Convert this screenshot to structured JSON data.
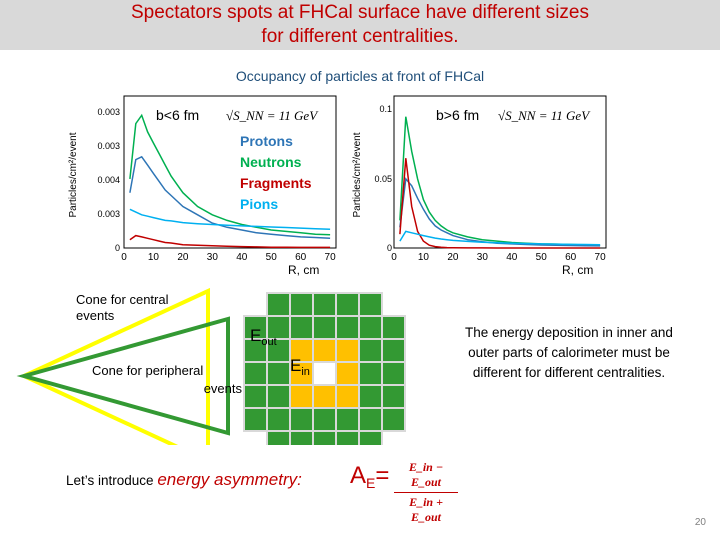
{
  "slide": {
    "title_line1": "Spectators spots at FHCal surface have different sizes",
    "title_line2": "for different centralities.",
    "subtitle": "Occupancy of particles at front of FHCal",
    "page_number": "20"
  },
  "left_chart": {
    "region_label": "b<6 fm",
    "energy_label": "√S_NN = 11 GeV",
    "y_axis_label": "Particles/cm²/event",
    "x_axis_label": "R, cm",
    "y_ticks": [
      "0.003",
      "0.003",
      "0.004",
      "0.003",
      "0"
    ],
    "x_ticks": [
      "0",
      "10",
      "20",
      "30",
      "40",
      "50",
      "60",
      "70"
    ],
    "legend": [
      {
        "name": "Protons",
        "color": "#2e75b6"
      },
      {
        "name": "Neutrons",
        "color": "#00b050"
      },
      {
        "name": "Fragments",
        "color": "#c00000"
      },
      {
        "name": "Pions",
        "color": "#00b0f0"
      }
    ]
  },
  "right_chart": {
    "region_label": "b>6 fm",
    "energy_label": "√S_NN = 11 GeV",
    "y_axis_label": "Particles/cm²/event",
    "x_axis_label": "R, cm",
    "y_ticks": [
      "0.1",
      "0.05",
      "0"
    ],
    "x_ticks": [
      "0",
      "10",
      "20",
      "30",
      "40",
      "50",
      "60",
      "70"
    ]
  },
  "chart_data": [
    {
      "type": "line",
      "title": "b<6 fm",
      "xlabel": "R, cm",
      "ylabel": "Particles/cm²/event",
      "xlim": [
        0,
        72
      ],
      "ylim": [
        0,
        0.0055
      ],
      "x": [
        2,
        4,
        6,
        8,
        10,
        12,
        14,
        16,
        18,
        20,
        25,
        30,
        35,
        40,
        45,
        50,
        55,
        60,
        65,
        70
      ],
      "series": [
        {
          "name": "Neutrons",
          "color": "#00b050",
          "values": [
            0.0025,
            0.0045,
            0.0048,
            0.0042,
            0.0038,
            0.0034,
            0.003,
            0.0026,
            0.0023,
            0.002,
            0.0015,
            0.0012,
            0.001,
            0.00085,
            0.00075,
            0.00065,
            0.0006,
            0.00055,
            0.0005,
            0.00048
          ]
        },
        {
          "name": "Protons",
          "color": "#2e75b6",
          "values": [
            0.002,
            0.0032,
            0.0033,
            0.003,
            0.0027,
            0.0024,
            0.0021,
            0.0019,
            0.0017,
            0.0015,
            0.0012,
            0.0009,
            0.00075,
            0.00065,
            0.00055,
            0.0005,
            0.00045,
            0.0004,
            0.00038,
            0.00035
          ]
        },
        {
          "name": "Fragments",
          "color": "#c00000",
          "values": [
            0.0003,
            0.00045,
            0.0004,
            0.00035,
            0.0003,
            0.00025,
            0.0002,
            0.00018,
            0.00015,
            0.00012,
            0.0001,
            8e-05,
            6e-05,
            5e-05,
            4e-05,
            3e-05,
            3e-05,
            2e-05,
            2e-05,
            2e-05
          ]
        },
        {
          "name": "Pions",
          "color": "#00b0f0",
          "values": [
            0.0014,
            0.0013,
            0.0012,
            0.00115,
            0.0011,
            0.00105,
            0.001,
            0.00098,
            0.00095,
            0.00092,
            0.00088,
            0.00085,
            0.00082,
            0.0008,
            0.00078,
            0.00076,
            0.00074,
            0.00072,
            0.0007,
            0.00068
          ]
        }
      ]
    },
    {
      "type": "line",
      "title": "b>6 fm",
      "xlabel": "R, cm",
      "ylabel": "Particles/cm²/event",
      "xlim": [
        0,
        72
      ],
      "ylim": [
        0,
        0.11
      ],
      "x": [
        2,
        4,
        6,
        8,
        10,
        12,
        14,
        16,
        18,
        20,
        25,
        30,
        35,
        40,
        45,
        50,
        55,
        60,
        65,
        70
      ],
      "series": [
        {
          "name": "Neutrons",
          "color": "#00b050",
          "values": [
            0.02,
            0.095,
            0.07,
            0.05,
            0.035,
            0.026,
            0.02,
            0.016,
            0.013,
            0.011,
            0.008,
            0.006,
            0.005,
            0.004,
            0.0035,
            0.003,
            0.0028,
            0.0025,
            0.0022,
            0.002
          ]
        },
        {
          "name": "Protons",
          "color": "#2e75b6",
          "values": [
            0.015,
            0.05,
            0.045,
            0.036,
            0.028,
            0.021,
            0.016,
            0.013,
            0.011,
            0.009,
            0.006,
            0.0045,
            0.0035,
            0.003,
            0.0025,
            0.0022,
            0.002,
            0.0018,
            0.0016,
            0.0015
          ]
        },
        {
          "name": "Fragments",
          "color": "#c00000",
          "values": [
            0.01,
            0.065,
            0.03,
            0.012,
            0.005,
            0.002,
            0.001,
            0.0005,
            0.0003,
            0.0002,
            0.0001,
            0.0001,
            0.0,
            0.0,
            0.0,
            0.0,
            0.0,
            0.0,
            0.0,
            0.0
          ]
        },
        {
          "name": "Pions",
          "color": "#00b0f0",
          "values": [
            0.005,
            0.012,
            0.011,
            0.01,
            0.009,
            0.008,
            0.0072,
            0.0065,
            0.006,
            0.0055,
            0.0048,
            0.0042,
            0.0038,
            0.0035,
            0.0032,
            0.003,
            0.0028,
            0.0026,
            0.0025,
            0.0024
          ]
        }
      ]
    }
  ],
  "diagram": {
    "cone_central_label_1": "Cone for central",
    "cone_central_label_2": "events",
    "cone_peripheral_label_1": "Cone for peripheral",
    "cone_peripheral_label_2": "events",
    "e_out_main": "E",
    "e_out_sub": "out",
    "e_in_main": "E",
    "e_in_sub": "in",
    "cone_central_color": "#ffff00",
    "cone_peripheral_color": "#339933",
    "module_green": "#339933",
    "module_yellow": "#ffc000"
  },
  "right_text": {
    "line1": "The energy deposition in inner and",
    "line2": "outer parts of calorimeter must be",
    "line3": "different for different centralities."
  },
  "bottom": {
    "intro": "Let’s introduce",
    "emphasis": "energy asymmetry",
    "colon": ":",
    "symbol_main": "A",
    "symbol_sub": "E",
    "equals": "=",
    "numerator": "E_in − E_out",
    "denominator": "E_in + E_out"
  }
}
